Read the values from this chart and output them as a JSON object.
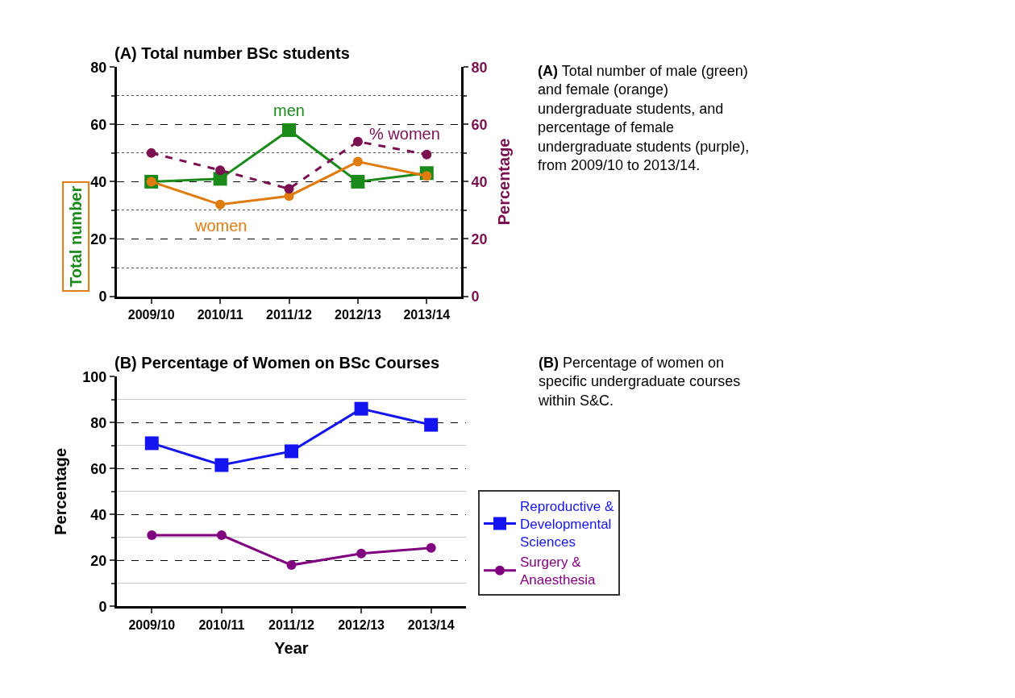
{
  "chart_data": [
    {
      "type": "line",
      "title": "(A) Total number BSc students",
      "xlabel": null,
      "ylabel": "Total number",
      "y2label": "Percentage",
      "categories": [
        "2009/10",
        "2010/11",
        "2011/12",
        "2012/13",
        "2013/14"
      ],
      "series": [
        {
          "name": "men",
          "color": "#1a8a1a",
          "values": [
            40,
            41,
            58,
            40,
            43
          ],
          "marker": "square",
          "line_style": "solid"
        },
        {
          "name": "women",
          "color": "#e07b10",
          "values": [
            40,
            32,
            35,
            47,
            42
          ],
          "marker": "circle",
          "line_style": "solid"
        },
        {
          "name": "% women",
          "color": "#7a1050",
          "values": [
            50,
            44,
            37.5,
            54,
            49.5
          ],
          "marker": "circle",
          "line_style": "dashed",
          "axis": "y2"
        }
      ],
      "ylim": [
        0,
        80
      ],
      "yticks": [
        0,
        {
          "value": 10,
          "label": null
        },
        20,
        {
          "value": 30,
          "label": null
        },
        40,
        {
          "value": 50,
          "label": null
        },
        60,
        {
          "value": 70,
          "label": null
        },
        80
      ],
      "y2lim": [
        0,
        80
      ],
      "y2ticks": [
        0,
        {
          "value": 10,
          "label": null
        },
        20,
        {
          "value": 30,
          "label": null
        },
        40,
        {
          "value": 50,
          "label": null
        },
        60,
        {
          "value": 70,
          "label": null
        },
        80
      ],
      "grid": "y",
      "legend": false,
      "annotations": [
        "(A) Total number of male (green) and female (orange) undergraduate students, and percentage of female undergraduate students (purple), from 2009/10 to 2013/14."
      ]
    },
    {
      "type": "line",
      "title": "(B) Percentage of Women on BSc Courses",
      "xlabel": "Year",
      "ylabel": "Percentage",
      "categories": [
        "2009/10",
        "2010/11",
        "2011/12",
        "2012/13",
        "2013/14"
      ],
      "series": [
        {
          "name": "Reproductive & Developmental Sciences",
          "color": "#1414f0",
          "values": [
            71,
            61.5,
            67.5,
            86,
            79
          ],
          "marker": "square"
        },
        {
          "name": "Surgery & Anaesthesia",
          "color": "#800080",
          "values": [
            31,
            31,
            18,
            23,
            25.5
          ],
          "marker": "circle"
        }
      ],
      "ylim": [
        0,
        100
      ],
      "yticks": [
        0,
        {
          "value": 10,
          "label": null
        },
        20,
        {
          "value": 30,
          "label": null
        },
        40,
        {
          "value": 50,
          "label": null
        },
        60,
        {
          "value": 70,
          "label": null
        },
        80,
        {
          "value": 90,
          "label": null
        },
        100
      ],
      "grid": "y",
      "legend": "right",
      "line_style": "solid",
      "annotations": [
        "(B) Percentage of women on specific undergraduate courses within S&C."
      ]
    }
  ]
}
